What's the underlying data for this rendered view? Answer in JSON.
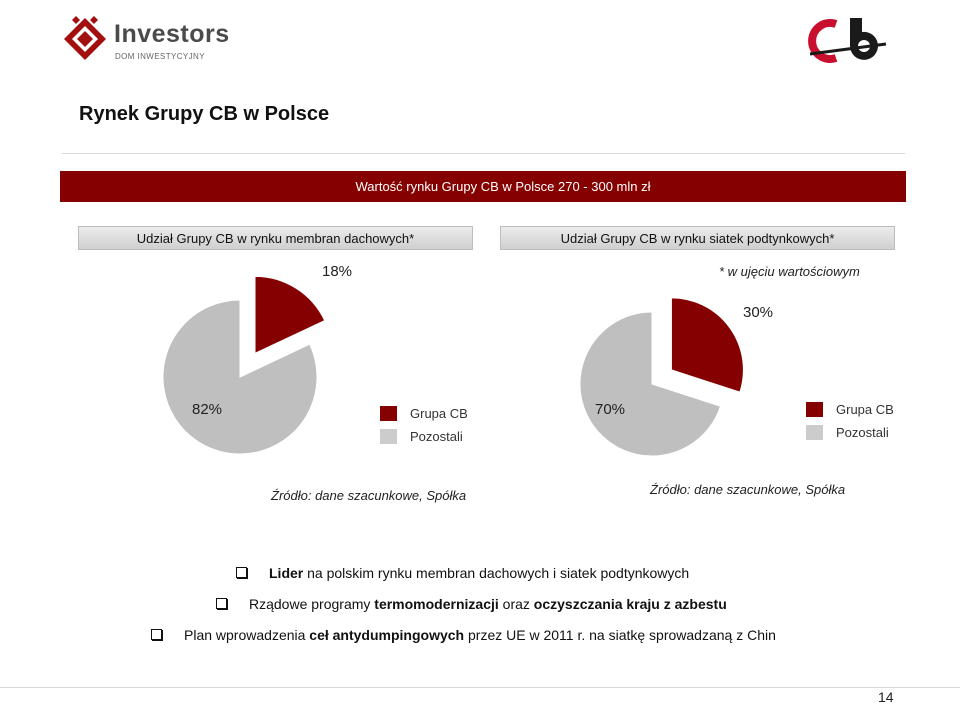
{
  "logo": {
    "brand": "Investors",
    "subtitle": "DOM INWESTYCYJNY"
  },
  "title": "Rynek Grupy CB w Polsce",
  "banner": "Wartość rynku Grupy CB w Polsce 270 - 300 mln zł",
  "note": "* w ujęciu wartościowym",
  "colors": {
    "brand_red": "#850000",
    "other_gray": "#bfbfbf"
  },
  "chart_data": [
    {
      "type": "pie",
      "title": "Udział Grupy CB w rynku membran dachowych*",
      "series": [
        {
          "name": "Grupa CB",
          "value": 18,
          "label": "18%"
        },
        {
          "name": "Pozostali",
          "value": 82,
          "label": "82%"
        }
      ],
      "legend": [
        "Grupa CB",
        "Pozostali"
      ],
      "legend_position": "right",
      "source": "Źródło: dane szacunkowe, Spółka"
    },
    {
      "type": "pie",
      "title": "Udział Grupy CB w rynku siatek podtynkowych*",
      "series": [
        {
          "name": "Grupa CB",
          "value": 30,
          "label": "30%"
        },
        {
          "name": "Pozostali",
          "value": 70,
          "label": "70%"
        }
      ],
      "legend": [
        "Grupa CB",
        "Pozostali"
      ],
      "legend_position": "right",
      "source": "Źródło: dane szacunkowe, Spółka"
    }
  ],
  "bullets": [
    {
      "parts": [
        {
          "text": "Lider",
          "bold": true
        },
        {
          "text": " na polskim rynku membran dachowych i siatek podtynkowych",
          "bold": false
        }
      ]
    },
    {
      "parts": [
        {
          "text": "Rządowe programy ",
          "bold": false
        },
        {
          "text": "termomodernizacji",
          "bold": true
        },
        {
          "text": " oraz ",
          "bold": false
        },
        {
          "text": "oczyszczania kraju z azbestu",
          "bold": true
        }
      ]
    },
    {
      "parts": [
        {
          "text": "Plan wprowadzenia ",
          "bold": false
        },
        {
          "text": "ceł antydumpingowych",
          "bold": true
        },
        {
          "text": " przez UE w 2011 r. na siatkę sprowadzaną z Chin",
          "bold": false
        }
      ]
    }
  ],
  "page_number": "14"
}
